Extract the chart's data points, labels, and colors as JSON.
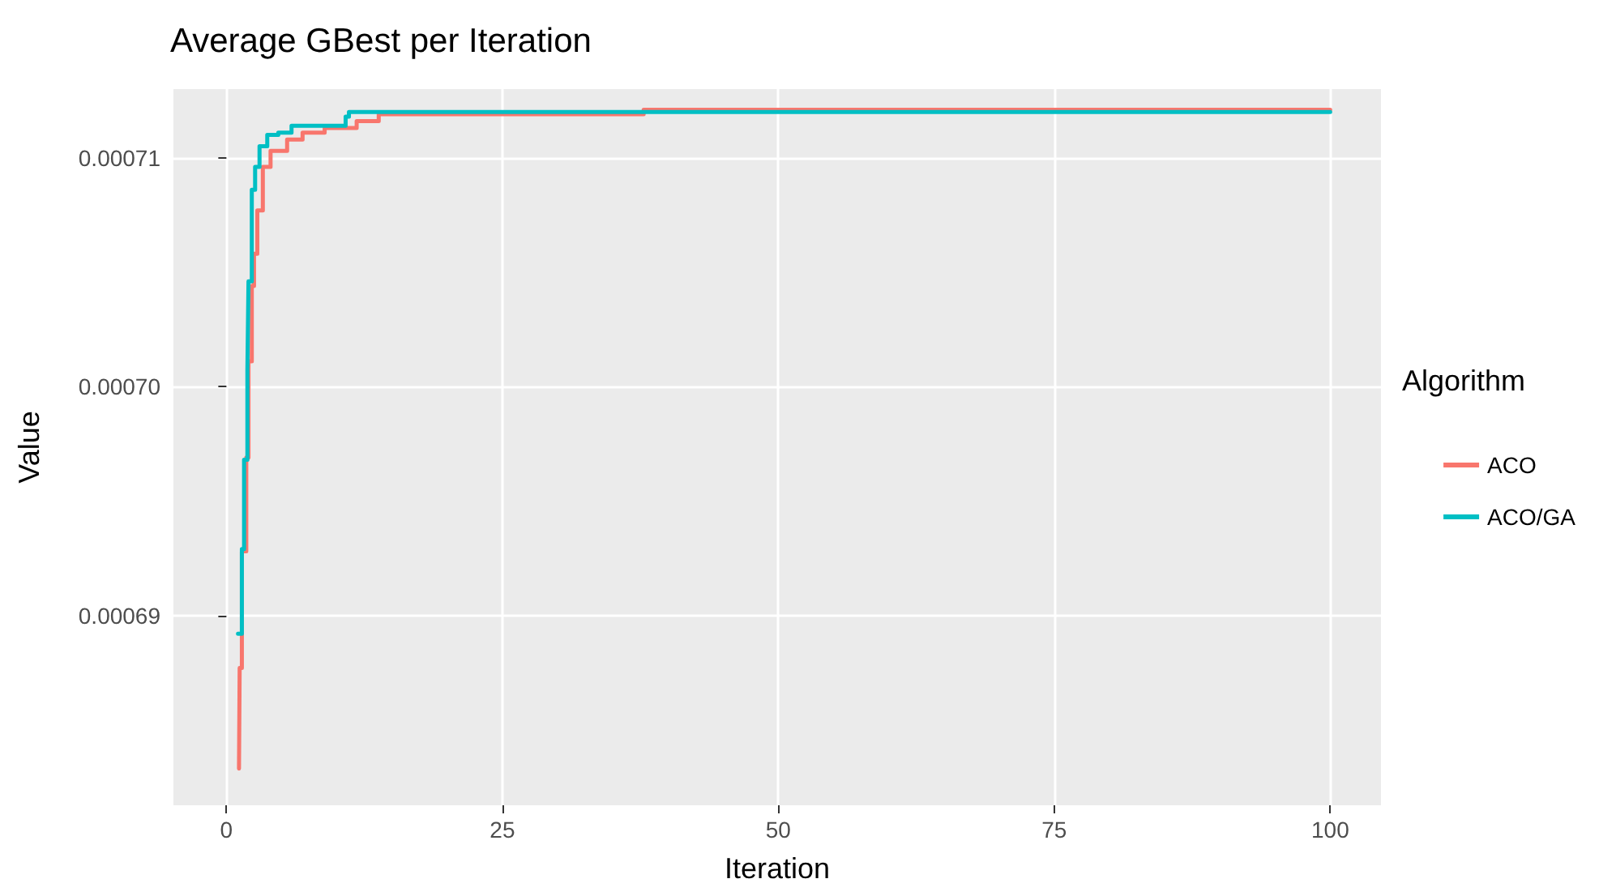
{
  "chart_data": {
    "type": "step",
    "title": "Average GBest per Iteration",
    "xlabel": "Iteration",
    "ylabel": "Value",
    "legend_title": "Algorithm",
    "legend": "right",
    "grid": true,
    "xlim": [
      -4.8,
      104.6
    ],
    "xticks": [
      0,
      25,
      50,
      75,
      100
    ],
    "ylim": [
      0.0006817,
      0.000713
    ],
    "yticks": [
      0.00069,
      {
        "value": 0.0007,
        "label": "0.00070"
      },
      0.00071
    ],
    "series": [
      {
        "name": "ACO",
        "color": "#f8766d",
        "x": [
          1.14,
          1.2,
          1.4,
          1.8,
          2.0,
          2.3,
          2.5,
          2.8,
          3.3,
          4.0,
          5.5,
          6.9,
          8.9,
          11.8,
          13.8,
          37.8,
          100
        ],
        "values": [
          0.0006833,
          0.0006877,
          0.0006928,
          0.0006969,
          0.0007011,
          0.0007044,
          0.0007058,
          0.0007077,
          0.0007096,
          0.0007103,
          0.0007108,
          0.0007111,
          0.0007113,
          0.0007116,
          0.0007119,
          0.0007121,
          0.0007121
        ]
      },
      {
        "name": "ACO/GA",
        "color": "#00bfc4",
        "x": [
          1.05,
          1.4,
          1.6,
          1.9,
          2.0,
          2.3,
          2.6,
          3.0,
          3.7,
          4.7,
          5.9,
          10.8,
          11.1,
          100
        ],
        "values": [
          0.0006892,
          0.0006929,
          0.0006968,
          0.0007007,
          0.0007046,
          0.0007086,
          0.0007096,
          0.0007105,
          0.000711,
          0.0007111,
          0.0007114,
          0.0007118,
          0.000712,
          0.000712
        ]
      }
    ]
  }
}
